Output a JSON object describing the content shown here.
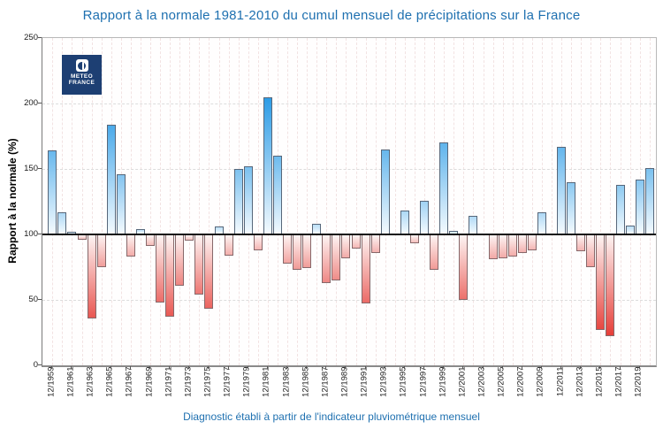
{
  "title": "Rapport à la normale 1981-2010 du cumul mensuel de précipitations sur la France",
  "caption": "Diagnostic établi à partir de l'indicateur pluviométrique mensuel",
  "logo": {
    "name": "meteo-france-logo",
    "line1": "METEO",
    "line2": "FRANCE"
  },
  "y_axis": {
    "label": "Rapport à la normale (%)",
    "ticks": [
      0,
      50,
      100,
      150,
      200,
      250
    ]
  },
  "x_axis": {
    "tick_labels": [
      "12/1959",
      "12/1961",
      "12/1963",
      "12/1965",
      "12/1967",
      "12/1969",
      "12/1971",
      "12/1973",
      "12/1975",
      "12/1977",
      "12/1979",
      "12/1981",
      "12/1983",
      "12/1985",
      "12/1987",
      "12/1989",
      "12/1991",
      "12/1993",
      "12/1995",
      "12/1997",
      "12/1999",
      "12/2001",
      "12/2003",
      "12/2005",
      "12/2007",
      "12/2009",
      "12/2011",
      "12/2013",
      "12/2015",
      "12/2017",
      "12/2019"
    ]
  },
  "colors": {
    "accent_blue": "#1e70b0",
    "logo_navy": "#1d3f73",
    "bar_blue_strong": "#2c9ce6",
    "bar_blue_pale": "#c6e4f8",
    "bar_blue_base": "#f4fafe",
    "bar_red_strong": "#e63a34",
    "bar_red_pale": "#f6ccca",
    "bar_red_base": "#fdf4f3",
    "bar_border_blue": "#57677a",
    "bar_border_red": "#87686a",
    "grid_gray": "#dcdcdc",
    "grid_pink": "#f2e2e2",
    "baseline": "#111111"
  },
  "chart_data": {
    "type": "bar",
    "title": "Rapport à la normale 1981-2010 du cumul mensuel de précipitations sur la France",
    "xlabel": "",
    "ylabel": "Rapport à la normale (%)",
    "ylim": [
      0,
      250
    ],
    "baseline": 100,
    "grid": true,
    "x": [
      "12/1959",
      "12/1960",
      "12/1961",
      "12/1962",
      "12/1963",
      "12/1964",
      "12/1965",
      "12/1966",
      "12/1967",
      "12/1968",
      "12/1969",
      "12/1970",
      "12/1971",
      "12/1972",
      "12/1973",
      "12/1974",
      "12/1975",
      "12/1976",
      "12/1977",
      "12/1978",
      "12/1979",
      "12/1980",
      "12/1981",
      "12/1982",
      "12/1983",
      "12/1984",
      "12/1985",
      "12/1986",
      "12/1987",
      "12/1988",
      "12/1989",
      "12/1990",
      "12/1991",
      "12/1992",
      "12/1993",
      "12/1994",
      "12/1995",
      "12/1996",
      "12/1997",
      "12/1998",
      "12/1999",
      "12/2000",
      "12/2001",
      "12/2002",
      "12/2003",
      "12/2004",
      "12/2005",
      "12/2006",
      "12/2007",
      "12/2008",
      "12/2009",
      "12/2010",
      "12/2011",
      "12/2012",
      "12/2013",
      "12/2014",
      "12/2015",
      "12/2016",
      "12/2017",
      "12/2018",
      "12/2019",
      "12/2020"
    ],
    "values": [
      164,
      117,
      102,
      96,
      36,
      75,
      184,
      146,
      83,
      104,
      91,
      48,
      37,
      61,
      95,
      54,
      43,
      106,
      84,
      150,
      152,
      88,
      205,
      160,
      78,
      73,
      74,
      108,
      63,
      65,
      82,
      89,
      47,
      86,
      165,
      101,
      118,
      93,
      126,
      73,
      170,
      103,
      50,
      114,
      100,
      81,
      82,
      83,
      86,
      88,
      117,
      100,
      167,
      140,
      87,
      75,
      27,
      22,
      138,
      107,
      142,
      151
    ]
  }
}
